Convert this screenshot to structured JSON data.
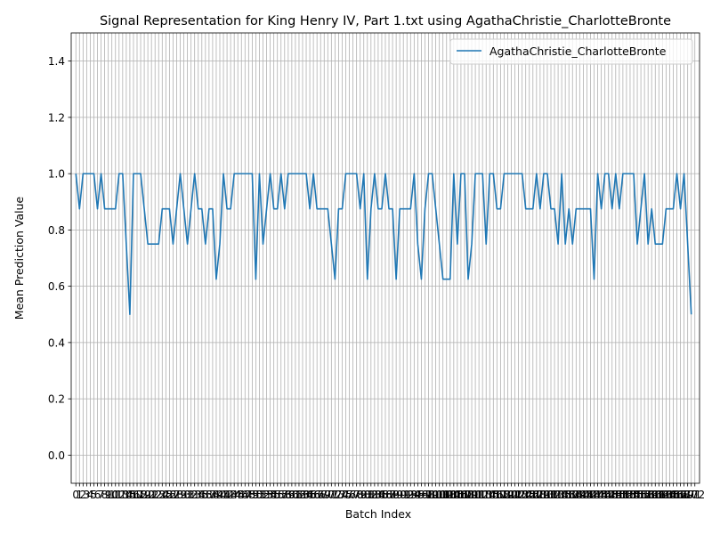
{
  "chart_data": {
    "type": "line",
    "title": "Signal Representation for King Henry IV, Part 1.txt using AgathaChristie_CharlotteBronte",
    "xlabel": "Batch Index",
    "ylabel": "Mean Prediction Value",
    "ylim": [
      -0.1,
      1.5
    ],
    "xlim": [
      -1.3,
      173.3
    ],
    "y_ticks": [
      "0.0",
      "0.2",
      "0.4",
      "0.6",
      "0.8",
      "1.0",
      "1.2",
      "1.4"
    ],
    "x_ticks": [
      "0",
      "1",
      "2",
      "3",
      "4",
      "5",
      "6",
      "7",
      "8",
      "9",
      "10",
      "11",
      "12",
      "13",
      "14",
      "15",
      "16",
      "17",
      "18",
      "19",
      "20",
      "21",
      "22",
      "23",
      "24",
      "25",
      "26",
      "27",
      "28",
      "29",
      "30",
      "31",
      "32",
      "33",
      "34",
      "35",
      "36",
      "37",
      "38",
      "39",
      "40",
      "41",
      "42",
      "43",
      "44",
      "45",
      "46",
      "47",
      "48",
      "49",
      "50",
      "51",
      "52",
      "53",
      "54",
      "55",
      "56",
      "57",
      "58",
      "59",
      "60",
      "61",
      "62",
      "63",
      "64",
      "65",
      "66",
      "67",
      "68",
      "69",
      "70",
      "71",
      "72",
      "73",
      "74",
      "75",
      "76",
      "77",
      "78",
      "79",
      "80",
      "81",
      "82",
      "83",
      "84",
      "85",
      "86",
      "87",
      "88",
      "89",
      "90",
      "91",
      "92",
      "93",
      "94",
      "95",
      "96",
      "97",
      "98",
      "99",
      "100",
      "101",
      "102",
      "103",
      "104",
      "105",
      "106",
      "107",
      "108",
      "109",
      "110",
      "111",
      "112",
      "113",
      "114",
      "115",
      "116",
      "117",
      "118",
      "119",
      "120",
      "121",
      "122",
      "123",
      "124",
      "125",
      "126",
      "127",
      "128",
      "129",
      "130",
      "131",
      "132",
      "133",
      "134",
      "135",
      "136",
      "137",
      "138",
      "139",
      "140",
      "141",
      "142",
      "143",
      "144",
      "145",
      "146",
      "147",
      "148",
      "149",
      "150",
      "151",
      "152",
      "153",
      "154",
      "155",
      "156",
      "157",
      "158",
      "159",
      "160",
      "161",
      "162",
      "163",
      "164",
      "165",
      "166",
      "167",
      "168",
      "169",
      "170",
      "171",
      "172"
    ],
    "grid": true,
    "legend_position": "top-right",
    "series": [
      {
        "name": "AgathaChristie_CharlotteBronte",
        "color": "#1f77b4",
        "values": [
          1.0,
          0.875,
          1.0,
          1.0,
          1.0,
          1.0,
          0.875,
          1.0,
          0.875,
          0.875,
          0.875,
          0.875,
          1.0,
          1.0,
          0.75,
          0.5,
          1.0,
          1.0,
          1.0,
          0.875,
          0.75,
          0.75,
          0.75,
          0.75,
          0.875,
          0.875,
          0.875,
          0.75,
          0.875,
          1.0,
          0.875,
          0.75,
          0.875,
          1.0,
          0.875,
          0.875,
          0.75,
          0.875,
          0.875,
          0.625,
          0.75,
          1.0,
          0.875,
          0.875,
          1.0,
          1.0,
          1.0,
          1.0,
          1.0,
          1.0,
          0.625,
          1.0,
          0.75,
          0.875,
          1.0,
          0.875,
          0.875,
          1.0,
          0.875,
          1.0,
          1.0,
          1.0,
          1.0,
          1.0,
          1.0,
          0.875,
          1.0,
          0.875,
          0.875,
          0.875,
          0.875,
          0.75,
          0.625,
          0.875,
          0.875,
          1.0,
          1.0,
          1.0,
          1.0,
          0.875,
          1.0,
          0.625,
          0.875,
          1.0,
          0.875,
          0.875,
          1.0,
          0.875,
          0.875,
          0.625,
          0.875,
          0.875,
          0.875,
          0.875,
          1.0,
          0.75,
          0.625,
          0.875,
          1.0,
          1.0,
          0.875,
          0.75,
          0.625,
          0.625,
          0.625,
          1.0,
          0.75,
          1.0,
          1.0,
          0.625,
          0.75,
          1.0,
          1.0,
          1.0,
          0.75,
          1.0,
          1.0,
          0.875,
          0.875,
          1.0,
          1.0,
          1.0,
          1.0,
          1.0,
          1.0,
          0.875,
          0.875,
          0.875,
          1.0,
          0.875,
          1.0,
          1.0,
          0.875,
          0.875,
          0.75,
          1.0,
          0.75,
          0.875,
          0.75,
          0.875,
          0.875,
          0.875,
          0.875,
          0.875,
          0.625,
          1.0,
          0.875,
          1.0,
          1.0,
          0.875,
          1.0,
          0.875,
          1.0,
          1.0,
          1.0,
          1.0,
          0.75,
          0.875,
          1.0,
          0.75,
          0.875,
          0.75,
          0.75,
          0.75,
          0.875,
          0.875,
          0.875,
          1.0,
          0.875,
          1.0,
          0.75,
          0.5
        ]
      }
    ]
  }
}
